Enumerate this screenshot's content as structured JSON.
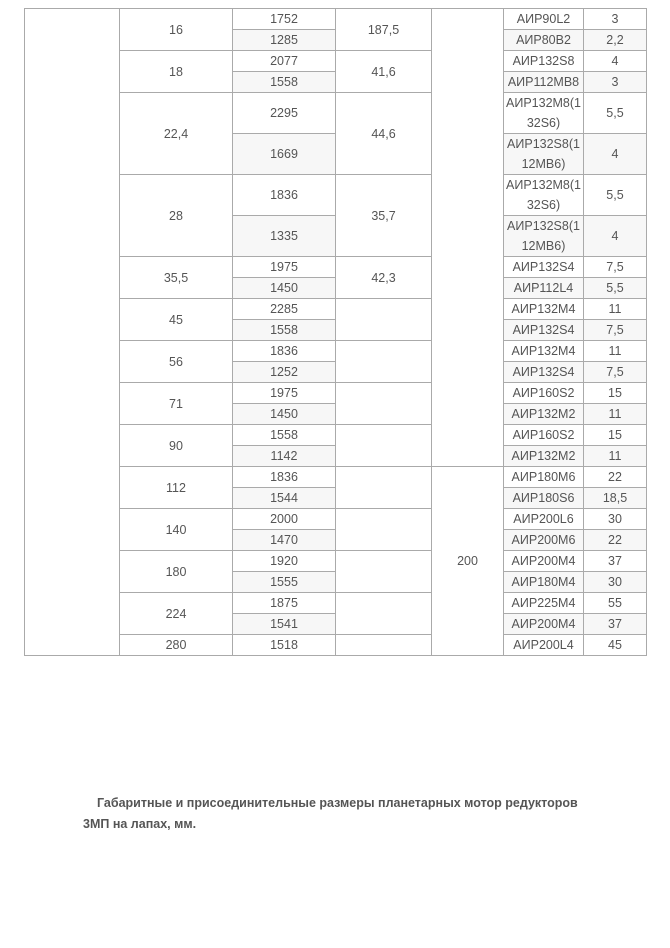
{
  "table": {
    "shared_col5_groups": [
      {
        "value": "",
        "group_count": 9
      },
      {
        "value": "200",
        "group_count": 5
      }
    ],
    "groups": [
      {
        "ratio": "16",
        "torque": "187,5",
        "rows": [
          {
            "rpm": "1752",
            "motor": "АИР90L2",
            "power": "3"
          },
          {
            "rpm": "1285",
            "motor": "АИР80B2",
            "power": "2,2"
          }
        ]
      },
      {
        "ratio": "18",
        "torque": "41,6",
        "rows": [
          {
            "rpm": "2077",
            "motor": "АИР132S8",
            "power": "4"
          },
          {
            "rpm": "1558",
            "motor": "АИР112MB8",
            "power": "3"
          }
        ]
      },
      {
        "ratio": "22,4",
        "torque": "44,6",
        "tall": true,
        "rows": [
          {
            "rpm": "2295",
            "motor": "АИР132M8(132S6)",
            "power": "5,5"
          },
          {
            "rpm": "1669",
            "motor": "АИР132S8(112MB6)",
            "power": "4"
          }
        ]
      },
      {
        "ratio": "28",
        "torque": "35,7",
        "tall": true,
        "rows": [
          {
            "rpm": "1836",
            "motor": "АИР132M8(132S6)",
            "power": "5,5"
          },
          {
            "rpm": "1335",
            "motor": "АИР132S8(112MB6)",
            "power": "4"
          }
        ]
      },
      {
        "ratio": "35,5",
        "torque": "42,3",
        "rows": [
          {
            "rpm": "1975",
            "motor": "АИР132S4",
            "power": "7,5"
          },
          {
            "rpm": "1450",
            "motor": "АИР112L4",
            "power": "5,5"
          }
        ]
      },
      {
        "ratio": "45",
        "torque": "",
        "rows": [
          {
            "rpm": "2285",
            "motor": "АИР132M4",
            "power": "11"
          },
          {
            "rpm": "1558",
            "motor": "АИР132S4",
            "power": "7,5"
          }
        ]
      },
      {
        "ratio": "56",
        "torque": "",
        "rows": [
          {
            "rpm": "1836",
            "motor": "АИР132M4",
            "power": "11"
          },
          {
            "rpm": "1252",
            "motor": "АИР132S4",
            "power": "7,5"
          }
        ]
      },
      {
        "ratio": "71",
        "torque": "",
        "rows": [
          {
            "rpm": "1975",
            "motor": "АИР160S2",
            "power": "15"
          },
          {
            "rpm": "1450",
            "motor": "АИР132M2",
            "power": "11"
          }
        ]
      },
      {
        "ratio": "90",
        "torque": "",
        "rows": [
          {
            "rpm": "1558",
            "motor": "АИР160S2",
            "power": "15"
          },
          {
            "rpm": "1142",
            "motor": "АИР132M2",
            "power": "11"
          }
        ]
      },
      {
        "ratio": "112",
        "torque": "",
        "rows": [
          {
            "rpm": "1836",
            "motor": "АИР180M6",
            "power": "22"
          },
          {
            "rpm": "1544",
            "motor": "АИР180S6",
            "power": "18,5"
          }
        ]
      },
      {
        "ratio": "140",
        "torque": "",
        "rows": [
          {
            "rpm": "2000",
            "motor": "АИР200L6",
            "power": "30"
          },
          {
            "rpm": "1470",
            "motor": "АИР200M6",
            "power": "22"
          }
        ]
      },
      {
        "ratio": "180",
        "torque": "",
        "rows": [
          {
            "rpm": "1920",
            "motor": "АИР200M4",
            "power": "37"
          },
          {
            "rpm": "1555",
            "motor": "АИР180M4",
            "power": "30"
          }
        ]
      },
      {
        "ratio": "224",
        "torque": "",
        "rows": [
          {
            "rpm": "1875",
            "motor": "АИР225M4",
            "power": "55"
          },
          {
            "rpm": "1541",
            "motor": "АИР200M4",
            "power": "37"
          }
        ]
      },
      {
        "ratio": "280",
        "torque": "",
        "rows": [
          {
            "rpm": "1518",
            "motor": "АИР200L4",
            "power": "45"
          }
        ]
      }
    ]
  },
  "caption": {
    "line1": "Габаритные и присоединительные размеры планетарных мотор редукторов",
    "line2": "3МП на лапах, мм."
  }
}
